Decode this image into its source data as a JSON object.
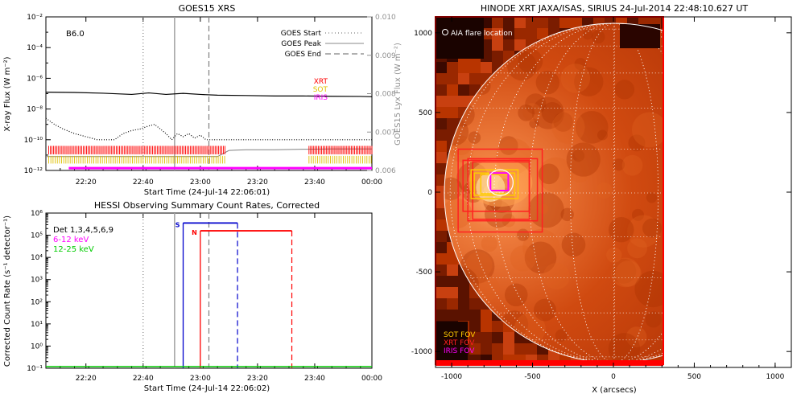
{
  "chart_data": [
    {
      "type": "line",
      "title": "GOES15 XRS",
      "xlabel": "Start Time (24-Jul-14 22:06:01)",
      "ylabel": "X-ray Flux (W m⁻²)",
      "y2label": "GOES15 Lyx Flux (W m⁻²)",
      "class_label": "B6.0",
      "x_ticks": [
        "22:20",
        "22:40",
        "23:00",
        "23:20",
        "23:40",
        "00:00"
      ],
      "x_tick_minutes": [
        14,
        34,
        54,
        74,
        94,
        114
      ],
      "xlim_minutes": [
        0,
        114
      ],
      "y_scale": "log",
      "ylim": [
        1e-12,
        0.01
      ],
      "y_ticks": [
        "10⁻¹²",
        "10⁻¹⁰",
        "10⁻⁸",
        "10⁻⁶",
        "10⁻⁴",
        "10⁻²"
      ],
      "y_tick_exps": [
        -12,
        -10,
        -8,
        -6,
        -4,
        -2
      ],
      "y2lim": [
        0.006,
        0.01
      ],
      "y2_ticks": [
        "0.006",
        "0.007",
        "0.008",
        "0.009",
        "0.010"
      ],
      "y2_tick_values": [
        0.006,
        0.007,
        0.008,
        0.009,
        0.01
      ],
      "series": [
        {
          "name": "long",
          "x": [
            0,
            10,
            20,
            30,
            36,
            42,
            48,
            54,
            60,
            70,
            80,
            90,
            100,
            110,
            114
          ],
          "y_log": [
            -6.9,
            -6.92,
            -6.97,
            -7.05,
            -6.95,
            -7.05,
            -6.98,
            -7.05,
            -7.1,
            -7.12,
            -7.15,
            -7.15,
            -7.17,
            -7.18,
            -7.2
          ]
        },
        {
          "name": "short",
          "x": [
            0,
            3,
            6,
            10,
            14,
            18,
            21,
            24,
            27,
            30,
            33,
            36,
            38,
            40,
            42,
            44,
            46,
            48,
            50,
            52,
            54,
            56,
            60,
            70,
            80,
            90,
            100,
            110,
            114
          ],
          "y_log": [
            -8.6,
            -9.0,
            -9.3,
            -9.6,
            -9.8,
            -10.0,
            -10.0,
            -10.0,
            -9.6,
            -9.4,
            -9.3,
            -9.1,
            -9.0,
            -9.3,
            -9.6,
            -10.0,
            -9.6,
            -9.8,
            -9.6,
            -9.9,
            -9.7,
            -10.0,
            -10.0,
            -10.0,
            -10.0,
            -10.0,
            -10.0,
            -10.0,
            -10.0
          ]
        },
        {
          "name": "lyman",
          "x": [
            0,
            10,
            20,
            30,
            40,
            50,
            60,
            64,
            70,
            80,
            90,
            100,
            110,
            114
          ],
          "y_log": [
            -11.1,
            -11.1,
            -11.1,
            -11.1,
            -11.1,
            -11.1,
            -11.1,
            -10.7,
            -10.65,
            -10.65,
            -10.62,
            -10.6,
            -10.6,
            -10.6
          ]
        }
      ],
      "markers": [
        {
          "name": "GOES Start",
          "x": 34,
          "style": "dotted",
          "color": "#808080"
        },
        {
          "name": "GOES Peak",
          "x": 45,
          "style": "solid",
          "color": "#a0a0a0"
        },
        {
          "name": "GOES End",
          "x": 57,
          "style": "dashed",
          "color": "#808080"
        }
      ],
      "instrument_legend": [
        {
          "name": "XRT",
          "color": "#ff0000"
        },
        {
          "name": "SOT",
          "color": "#e0c000"
        },
        {
          "name": "IRIS",
          "color": "#ff00ff"
        }
      ],
      "xrt_segments": [
        [
          1,
          63
        ],
        [
          92,
          114
        ]
      ],
      "sot_segments": [
        [
          1,
          63
        ],
        [
          92,
          114
        ]
      ],
      "iris_segments": [
        [
          8,
          114
        ]
      ]
    },
    {
      "type": "line",
      "title": "HESSI Observing Summary Count Rates, Corrected",
      "xlabel": "Start Time (24-Jul-14 22:06:02)",
      "ylabel": "Corrected Count Rate (s⁻¹ detector⁻¹)",
      "detectors": "Det 1,3,4,5,6,9",
      "x_ticks": [
        "22:20",
        "22:40",
        "23:00",
        "23:20",
        "23:40",
        "00:00"
      ],
      "x_tick_minutes": [
        14,
        34,
        54,
        74,
        94,
        114
      ],
      "xlim_minutes": [
        0,
        114
      ],
      "y_scale": "log",
      "ylim": [
        0.1,
        1000000.0
      ],
      "y_ticks": [
        "10⁻¹",
        "10⁰",
        "10¹",
        "10²",
        "10³",
        "10⁴",
        "10⁵",
        "10⁶"
      ],
      "y_tick_exps": [
        -1,
        0,
        1,
        2,
        3,
        4,
        5,
        6
      ],
      "series": [
        {
          "name": "6-12 keV",
          "color": "#ff00ff"
        },
        {
          "name": "12-25 keV",
          "color": "#00cc00"
        }
      ],
      "markers": [
        {
          "name": "GOES Start",
          "x": 34,
          "style": "dotted",
          "color": "#808080"
        },
        {
          "name": "GOES Peak",
          "x": 45,
          "style": "solid",
          "color": "#a0a0a0"
        },
        {
          "name": "GOES End",
          "x": 57,
          "style": "dashed",
          "color": "#808080"
        }
      ],
      "hessi_events": [
        {
          "label": "S",
          "color": "#0000cc",
          "start": 48,
          "end": 67,
          "end_style": "dashed",
          "level_log": 5.55
        },
        {
          "label": "N",
          "color": "#ff0000",
          "start": 54,
          "end": 86,
          "end_style": "dashed",
          "level_log": 5.2
        }
      ]
    },
    {
      "type": "heatmap",
      "title": "HINODE XRT JAXA/ISAS, SIRIUS 24-Jul-2014 22:48:10.627 UT",
      "xlabel": "X (arcsecs)",
      "ylabel": "",
      "xlim": [
        -1100,
        1100
      ],
      "ylim": [
        -1100,
        1100
      ],
      "x_ticks": [
        "-1000",
        "-500",
        "0",
        "500",
        "1000"
      ],
      "x_tick_values": [
        -1000,
        -500,
        0,
        500,
        1000
      ],
      "y_ticks": [
        "1000",
        "500",
        "0",
        "-500",
        "-1000"
      ],
      "y_tick_values": [
        1000,
        500,
        0,
        -500,
        -1000
      ],
      "annotation": "AIA flare location",
      "flare_location": [
        -700,
        60
      ],
      "fov_legend": [
        {
          "name": "SOT FOV",
          "color": "#ffcc00"
        },
        {
          "name": "XRT FOV",
          "color": "#ff2020"
        },
        {
          "name": "IRIS FOV",
          "color": "#ff00ff"
        }
      ]
    }
  ]
}
